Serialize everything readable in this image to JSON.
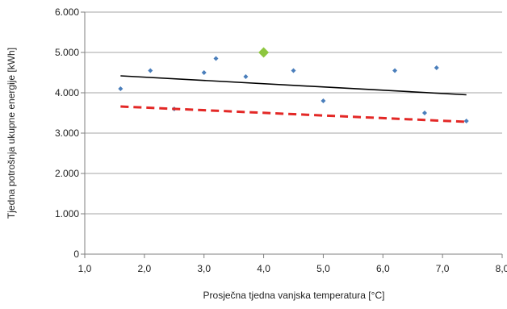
{
  "chart_data": {
    "type": "scatter",
    "title": "",
    "xlabel": "Prosječna tjedna vanjska temperatura [°C]",
    "ylabel": "Tjedna potrošnja ukupne energije [kWh]",
    "xlim": [
      1.0,
      8.0
    ],
    "ylim": [
      0,
      6000
    ],
    "x_ticks": [
      1.0,
      2.0,
      3.0,
      4.0,
      5.0,
      6.0,
      7.0,
      8.0
    ],
    "x_tick_labels": [
      "1,0",
      "2,0",
      "3,0",
      "4,0",
      "5,0",
      "6,0",
      "7,0",
      "8,0"
    ],
    "y_ticks": [
      0,
      1000,
      2000,
      3000,
      4000,
      5000,
      6000
    ],
    "y_tick_labels": [
      "0",
      "1.000",
      "2.000",
      "3.000",
      "4.000",
      "5.000",
      "6.000"
    ],
    "grid": "horizontal",
    "legend": "none",
    "series": [
      {
        "type": "scatter",
        "marker": "diamond",
        "color": "#4a7ebb",
        "points": [
          {
            "x": 1.6,
            "y": 4100
          },
          {
            "x": 2.1,
            "y": 4550
          },
          {
            "x": 2.5,
            "y": 3600
          },
          {
            "x": 3.0,
            "y": 4500
          },
          {
            "x": 3.2,
            "y": 4850
          },
          {
            "x": 3.7,
            "y": 4400
          },
          {
            "x": 4.5,
            "y": 4550
          },
          {
            "x": 5.0,
            "y": 3800
          },
          {
            "x": 6.2,
            "y": 4550
          },
          {
            "x": 6.7,
            "y": 3500
          },
          {
            "x": 6.9,
            "y": 4620
          },
          {
            "x": 7.4,
            "y": 3300
          }
        ]
      },
      {
        "type": "scatter",
        "marker": "diamond-large",
        "color": "#8dc63f",
        "points": [
          {
            "x": 4.0,
            "y": 5000
          }
        ]
      },
      {
        "type": "line",
        "style": "solid",
        "color": "#000000",
        "points": [
          {
            "x": 1.6,
            "y": 4420
          },
          {
            "x": 7.4,
            "y": 3950
          }
        ]
      },
      {
        "type": "line",
        "style": "dashed",
        "color": "#e32826",
        "points": [
          {
            "x": 1.6,
            "y": 3660
          },
          {
            "x": 7.4,
            "y": 3280
          }
        ]
      }
    ]
  }
}
